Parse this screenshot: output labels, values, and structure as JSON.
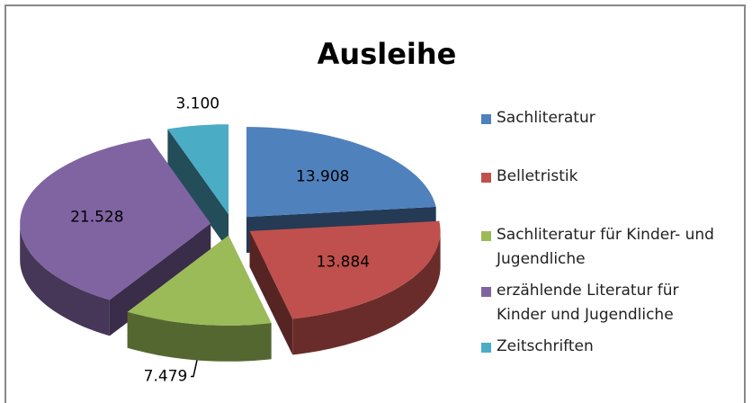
{
  "chart_data": {
    "type": "pie",
    "title": "Ausleihe",
    "categories": [
      "Sachliteratur",
      "Belletristik",
      "Sachliteratur für Kinder- und Jugendliche",
      "erzählende Literatur für Kinder und Jugendliche",
      "Zeitschriften"
    ],
    "values": [
      13908,
      13884,
      7479,
      21528,
      3100
    ],
    "value_labels": [
      "13.908",
      "13.884",
      "7.479",
      "21.528",
      "3.100"
    ],
    "colors": [
      "#4f81bd",
      "#c0504d",
      "#9bbb59",
      "#8064a2",
      "#4bacc6"
    ],
    "legend": "right"
  }
}
